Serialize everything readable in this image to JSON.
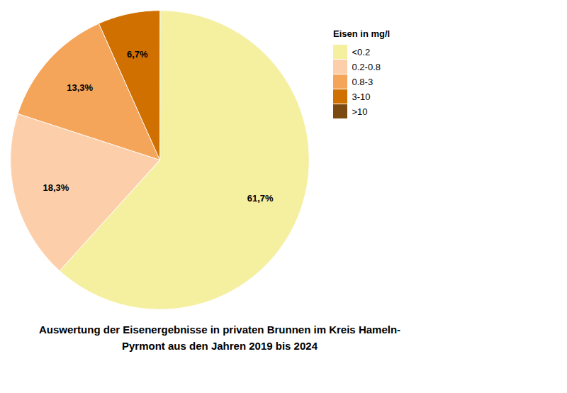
{
  "chart_data": {
    "type": "pie",
    "title": "Auswertung der Eisenergebnisse in privaten Brunnen im Kreis Hameln-\nPyrmont aus den Jahren 2019 bis 2024",
    "legend_title": "Eisen in mg/l",
    "categories": [
      "<0.2",
      "0.2-0.8",
      "0.8-3",
      "3-10",
      ">10"
    ],
    "values": [
      61.7,
      18.3,
      13.3,
      6.7,
      0.0
    ],
    "value_labels": [
      "61,7%",
      "18,3%",
      "13,3%",
      "6,7%",
      null
    ],
    "colors": [
      "#F5F0A0",
      "#FCCFAA",
      "#F5A55A",
      "#D07000",
      "#7B4A10"
    ],
    "data_labels": true,
    "legend": "upper right"
  }
}
